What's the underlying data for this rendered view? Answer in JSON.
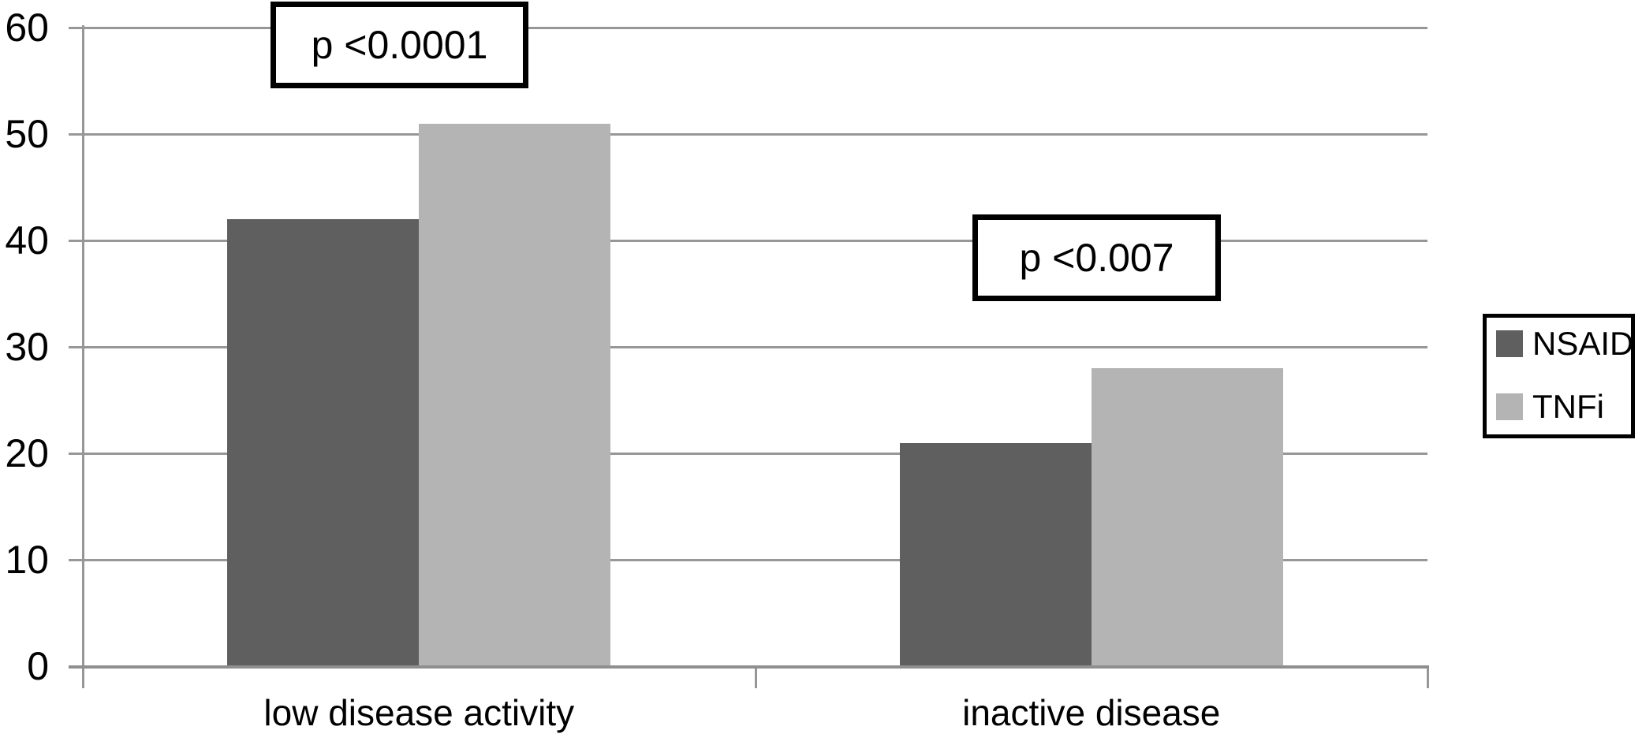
{
  "chart_data": {
    "type": "bar",
    "categories": [
      "low disease activity",
      "inactive disease"
    ],
    "series": [
      {
        "name": "NSAID",
        "values": [
          42,
          21
        ],
        "color": "#5f5f5f"
      },
      {
        "name": "TNFi",
        "values": [
          51,
          28
        ],
        "color": "#b4b4b4"
      }
    ],
    "annotations": [
      {
        "text": "p <0.0001",
        "group": 0
      },
      {
        "text": "p <0.007",
        "group": 1
      }
    ],
    "title": "",
    "xlabel": "",
    "ylabel": "",
    "ylim": [
      0,
      60
    ],
    "yticks": [
      0,
      10,
      20,
      30,
      40,
      50,
      60
    ],
    "grid": true,
    "legend_position": "right",
    "colors": {
      "gridline": "#979797",
      "axis": "#8f8f8f",
      "text": "#000000",
      "background": "#ffffff",
      "annotation_border": "#000000",
      "legend_border": "#000000"
    }
  }
}
